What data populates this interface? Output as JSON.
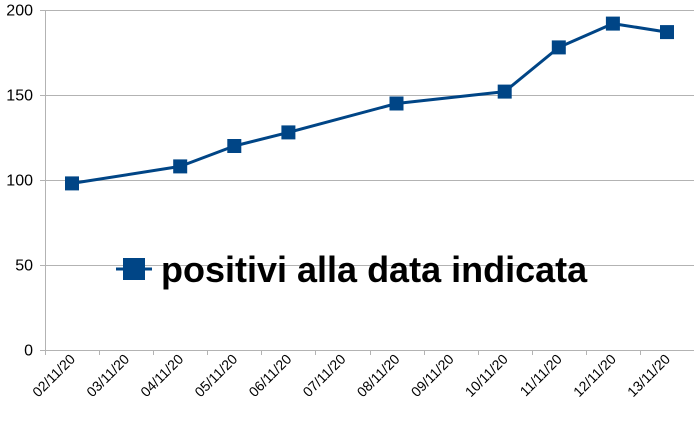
{
  "chart_data": {
    "type": "line",
    "x": [
      "02/11/20",
      "03/11/20",
      "04/11/20",
      "05/11/20",
      "06/11/20",
      "07/11/20",
      "08/11/20",
      "09/11/20",
      "10/11/20",
      "11/11/20",
      "12/11/20",
      "13/11/20"
    ],
    "series": [
      {
        "name": "positivi alla data indicata",
        "points": [
          {
            "x": "02/11/20",
            "y": 98
          },
          {
            "x": "04/11/20",
            "y": 108
          },
          {
            "x": "05/11/20",
            "y": 120
          },
          {
            "x": "06/11/20",
            "y": 128
          },
          {
            "x": "08/11/20",
            "y": 145
          },
          {
            "x": "10/11/20",
            "y": 152
          },
          {
            "x": "11/11/20",
            "y": 178
          },
          {
            "x": "12/11/20",
            "y": 192
          },
          {
            "x": "13/11/20",
            "y": 187
          }
        ],
        "color": "#004586"
      }
    ],
    "ylim": [
      0,
      200
    ],
    "yticks": [
      0,
      50,
      100,
      150,
      200
    ],
    "grid": true,
    "legend": "inside-center",
    "title": "",
    "xlabel": "",
    "ylabel": ""
  }
}
